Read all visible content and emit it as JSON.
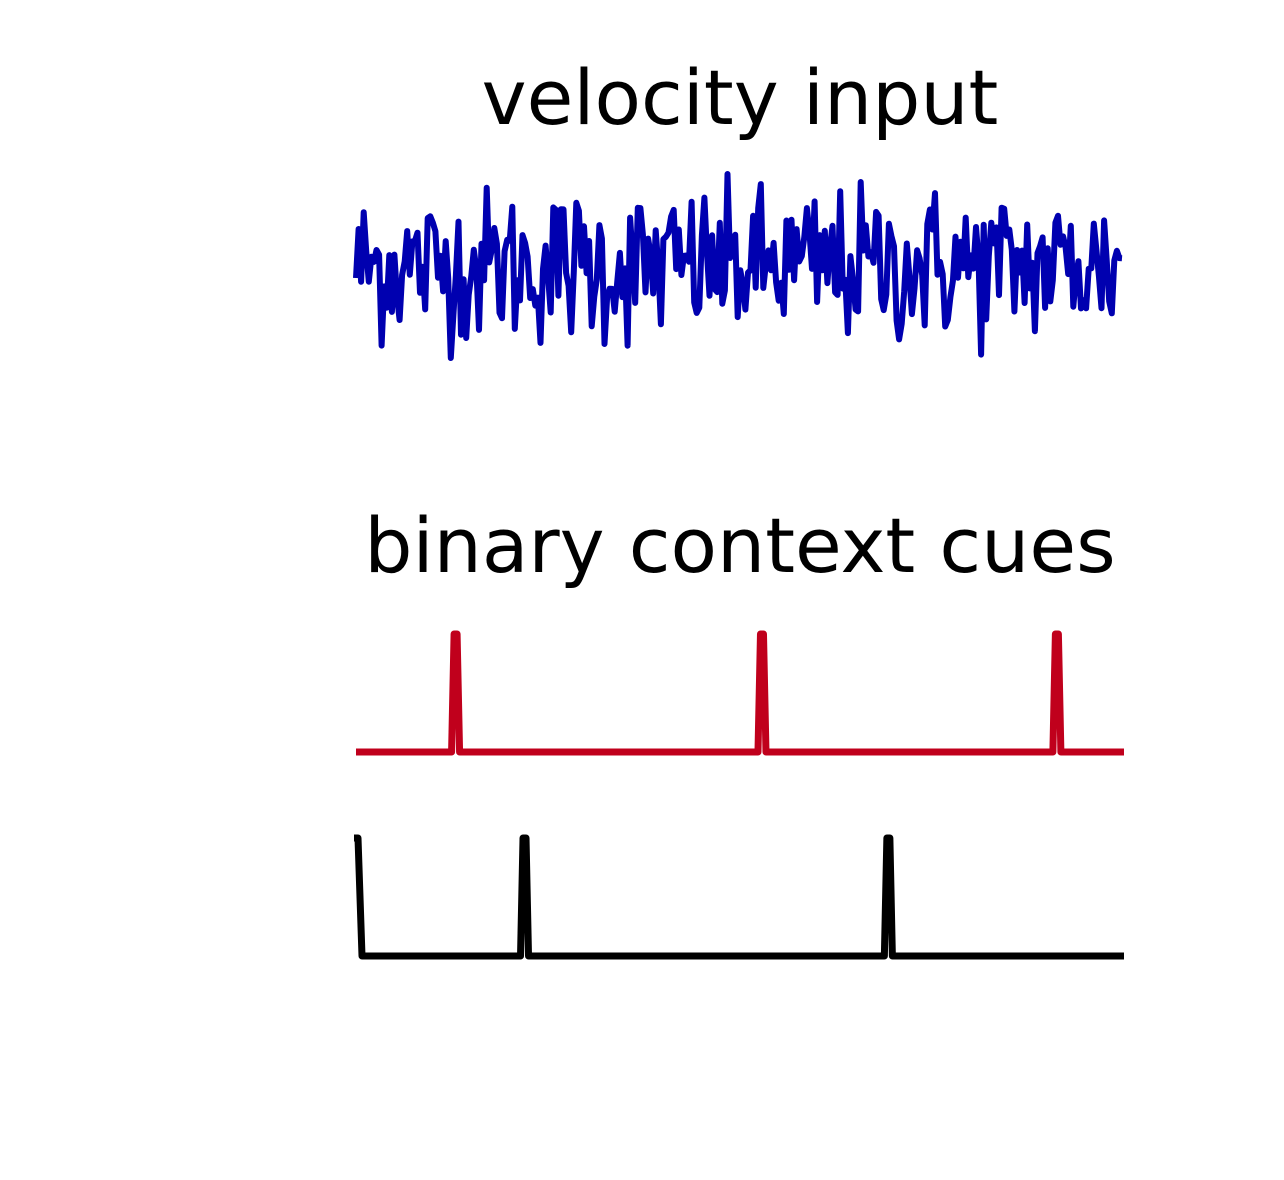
{
  "panels": {
    "velocity": {
      "title": "velocity input",
      "color": "#0000b0"
    },
    "context": {
      "title": "binary context cues",
      "cue_a_color": "#c0001c",
      "cue_b_color": "#000000"
    }
  },
  "chart_data": {
    "type": "line",
    "title": "",
    "series": [
      {
        "signal": "velocity",
        "trace": "noise",
        "samples": 300,
        "amplitude_range": [
          -1,
          1
        ]
      },
      {
        "signal": "context cue A",
        "trace": "impulses",
        "pulse_positions": [
          0.13,
          0.53,
          0.915
        ]
      },
      {
        "signal": "context cue B",
        "trace": "impulses",
        "pulse_positions": [
          0.0,
          0.22,
          0.695
        ]
      }
    ]
  }
}
